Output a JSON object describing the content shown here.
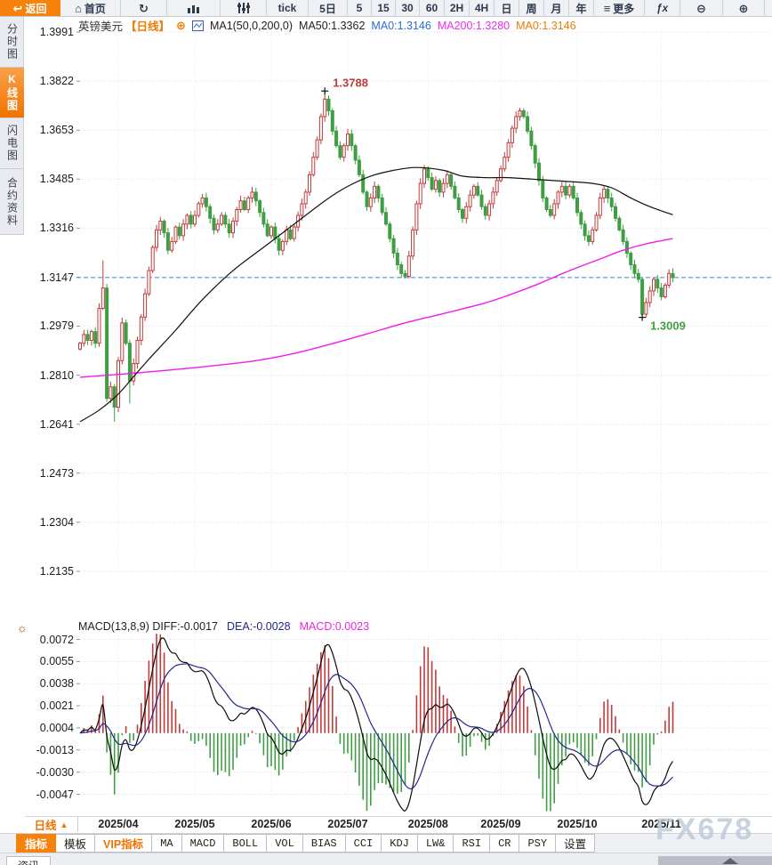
{
  "colors": {
    "accent": "#f6820e",
    "up": "#c23b3b",
    "down": "#3f9e43",
    "ma50": "#111111",
    "ma200": "#f318f3",
    "dea": "#23278f",
    "diff": "#0a0a0a",
    "current_line": "#2e8ae6",
    "grid": "#dadee7",
    "vgrid": "#e7eaf1"
  },
  "toolbar": {
    "items": [
      {
        "name": "back",
        "label": "返回",
        "icon": "back",
        "accent": true
      },
      {
        "name": "home",
        "label": "首页",
        "icon": "home"
      },
      {
        "name": "refresh",
        "label": "",
        "icon": "refresh"
      },
      {
        "name": "bar-chart",
        "label": "",
        "icon": "bars"
      },
      {
        "name": "candle-settings",
        "label": "",
        "icon": "candles"
      },
      {
        "name": "tick",
        "label": "tick"
      },
      {
        "name": "5d",
        "label": "5日"
      },
      {
        "name": "5",
        "label": "5"
      },
      {
        "name": "15",
        "label": "15"
      },
      {
        "name": "30",
        "label": "30"
      },
      {
        "name": "60",
        "label": "60"
      },
      {
        "name": "2h",
        "label": "2H"
      },
      {
        "name": "4h",
        "label": "4H"
      },
      {
        "name": "day",
        "label": "日"
      },
      {
        "name": "week",
        "label": "周"
      },
      {
        "name": "month",
        "label": "月"
      },
      {
        "name": "year",
        "label": "年"
      },
      {
        "name": "more",
        "label": "更多",
        "icon": "menu"
      },
      {
        "name": "fx",
        "label": "ƒx"
      },
      {
        "name": "zoom-out",
        "label": "",
        "icon": "zoom-out"
      },
      {
        "name": "zoom-in",
        "label": "",
        "icon": "zoom-in"
      }
    ]
  },
  "sidebar": {
    "items": [
      {
        "name": "time-chart",
        "label": "分时图",
        "active": false
      },
      {
        "name": "kline-chart",
        "label": "K线图",
        "active": true
      },
      {
        "name": "lightning-chart",
        "label": "闪电图",
        "active": false
      },
      {
        "name": "contract-info",
        "label": "合约资料",
        "active": false
      }
    ]
  },
  "chart_header": {
    "symbol": "英镑美元",
    "period": "【日线】",
    "plus": "⊕",
    "ma_settings": "MA1(50,0,200,0)",
    "ma_values": [
      {
        "label": "MA50:1.3362",
        "color": "#222222"
      },
      {
        "label": "MA0:1.3146",
        "color": "#2a6bd8"
      },
      {
        "label": "MA200:1.3280",
        "color": "#ef2cf0"
      },
      {
        "label": "MA0:1.3146",
        "color": "#f07c00"
      }
    ]
  },
  "macd_header": {
    "main": "MACD(13,8,9) DIFF:-0.0017",
    "dea": "DEA:-0.0028",
    "macd": "MACD:0.0023"
  },
  "bottom": {
    "period_selector": "日线",
    "period_arrow": "▲",
    "tabs": [
      {
        "name": "indicator",
        "label": "指标",
        "active": true
      },
      {
        "name": "template",
        "label": "模板"
      },
      {
        "name": "vip-indicator",
        "label": "VIP指标",
        "vip": true
      },
      {
        "name": "ma",
        "label": "MA",
        "latin": true
      },
      {
        "name": "macd",
        "label": "MACD",
        "latin": true
      },
      {
        "name": "boll",
        "label": "BOLL",
        "latin": true
      },
      {
        "name": "vol",
        "label": "VOL",
        "latin": true
      },
      {
        "name": "bias",
        "label": "BIAS",
        "latin": true
      },
      {
        "name": "cci",
        "label": "CCI",
        "latin": true
      },
      {
        "name": "kdj",
        "label": "KDJ",
        "latin": true
      },
      {
        "name": "lwr",
        "label": "LW&",
        "latin": true
      },
      {
        "name": "rsi",
        "label": "RSI",
        "latin": true
      },
      {
        "name": "cr",
        "label": "CR",
        "latin": true
      },
      {
        "name": "psy",
        "label": "PSY",
        "latin": true
      },
      {
        "name": "settings",
        "label": "设置"
      }
    ],
    "partial_tab": "资讯"
  },
  "watermark": "FX678",
  "chart_data": [
    {
      "type": "candlestick",
      "title": "英镑美元【日线】",
      "ylim": [
        1.2135,
        1.3991
      ],
      "y_ticks": [
        1.3991,
        1.3822,
        1.3653,
        1.3485,
        1.3316,
        1.3147,
        1.2979,
        1.281,
        1.2641,
        1.2473,
        1.2304,
        1.2135
      ],
      "x_ticks": [
        {
          "label": "2025/04",
          "i": 10
        },
        {
          "label": "2025/05",
          "i": 30
        },
        {
          "label": "2025/06",
          "i": 50
        },
        {
          "label": "2025/07",
          "i": 70
        },
        {
          "label": "2025/08",
          "i": 91
        },
        {
          "label": "2025/09",
          "i": 110
        },
        {
          "label": "2025/10",
          "i": 130
        },
        {
          "label": "2025/11",
          "i": 152
        }
      ],
      "current_price": 1.3146,
      "high_annotation": {
        "text": "1.3788",
        "i": 64,
        "price": 1.3788
      },
      "low_annotation": {
        "text": "1.3009",
        "i": 147,
        "price": 1.3009
      },
      "first_open": 1.29,
      "closes": [
        1.292,
        1.295,
        1.293,
        1.296,
        1.292,
        1.304,
        1.311,
        1.273,
        1.277,
        1.27,
        1.286,
        1.299,
        1.292,
        1.279,
        1.285,
        1.293,
        1.301,
        1.309,
        1.317,
        1.325,
        1.331,
        1.334,
        1.33,
        1.324,
        1.327,
        1.332,
        1.329,
        1.333,
        1.336,
        1.333,
        1.336,
        1.34,
        1.342,
        1.339,
        1.335,
        1.331,
        1.333,
        1.336,
        1.333,
        1.33,
        1.334,
        1.338,
        1.341,
        1.338,
        1.342,
        1.344,
        1.341,
        1.337,
        1.333,
        1.329,
        1.332,
        1.328,
        1.324,
        1.327,
        1.331,
        1.328,
        1.332,
        1.336,
        1.34,
        1.344,
        1.35,
        1.356,
        1.362,
        1.37,
        1.376,
        1.372,
        1.365,
        1.36,
        1.356,
        1.36,
        1.364,
        1.36,
        1.355,
        1.35,
        1.344,
        1.339,
        1.342,
        1.346,
        1.342,
        1.337,
        1.333,
        1.328,
        1.323,
        1.319,
        1.316,
        1.315,
        1.322,
        1.331,
        1.34,
        1.347,
        1.352,
        1.349,
        1.345,
        1.348,
        1.344,
        1.347,
        1.35,
        1.346,
        1.342,
        1.338,
        1.335,
        1.339,
        1.343,
        1.346,
        1.343,
        1.339,
        1.336,
        1.34,
        1.344,
        1.348,
        1.352,
        1.356,
        1.361,
        1.366,
        1.37,
        1.372,
        1.37,
        1.365,
        1.36,
        1.354,
        1.348,
        1.342,
        1.338,
        1.336,
        1.34,
        1.344,
        1.346,
        1.343,
        1.346,
        1.342,
        1.337,
        1.333,
        1.329,
        1.327,
        1.331,
        1.336,
        1.342,
        1.345,
        1.342,
        1.339,
        1.335,
        1.331,
        1.327,
        1.323,
        1.319,
        1.316,
        1.314,
        1.302,
        1.306,
        1.31,
        1.314,
        1.311,
        1.308,
        1.312,
        1.316,
        1.3146
      ],
      "wick_overrides": {
        "6": {
          "h": 1.3205
        },
        "9": {
          "l": 1.265
        },
        "13": {
          "l": 1.2712
        },
        "64": {
          "h": 1.3788
        },
        "85": {
          "l": 1.3143
        },
        "115": {
          "h": 1.373
        },
        "147": {
          "l": 1.3009
        }
      },
      "ma50": [
        [
          0,
          1.265
        ],
        [
          5,
          1.269
        ],
        [
          10,
          1.2745
        ],
        [
          14,
          1.2805
        ],
        [
          18,
          1.2865
        ],
        [
          25,
          1.2965
        ],
        [
          32,
          1.307
        ],
        [
          40,
          1.317
        ],
        [
          48,
          1.325
        ],
        [
          56,
          1.333
        ],
        [
          64,
          1.341
        ],
        [
          70,
          1.346
        ],
        [
          76,
          1.3495
        ],
        [
          82,
          1.3515
        ],
        [
          88,
          1.3525
        ],
        [
          95,
          1.3515
        ],
        [
          100,
          1.3495
        ],
        [
          106,
          1.349
        ],
        [
          112,
          1.349
        ],
        [
          118,
          1.3485
        ],
        [
          126,
          1.3478
        ],
        [
          134,
          1.347
        ],
        [
          139,
          1.3455
        ],
        [
          144,
          1.342
        ],
        [
          149,
          1.339
        ],
        [
          155,
          1.3362
        ]
      ],
      "ma200": [
        [
          0,
          1.2803
        ],
        [
          15,
          1.2818
        ],
        [
          30,
          1.2836
        ],
        [
          45,
          1.2858
        ],
        [
          55,
          1.2882
        ],
        [
          65,
          1.2915
        ],
        [
          75,
          1.2952
        ],
        [
          85,
          1.299
        ],
        [
          95,
          1.3022
        ],
        [
          105,
          1.3055
        ],
        [
          112,
          1.3085
        ],
        [
          120,
          1.3125
        ],
        [
          128,
          1.317
        ],
        [
          136,
          1.321
        ],
        [
          142,
          1.324
        ],
        [
          148,
          1.3262
        ],
        [
          155,
          1.328
        ]
      ]
    },
    {
      "type": "macd",
      "params": [
        13,
        8,
        9
      ],
      "ylim": [
        -0.0047,
        0.0072
      ],
      "y_ticks": [
        0.0072,
        0.0055,
        0.0038,
        0.0021,
        0.0004,
        -0.0013,
        -0.003,
        -0.0047
      ],
      "diff": -0.0017,
      "dea": -0.0028,
      "macd": 0.0023
    }
  ]
}
